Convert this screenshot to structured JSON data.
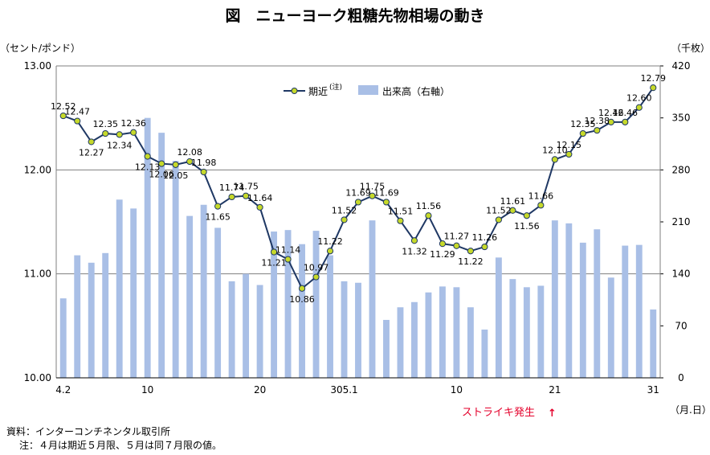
{
  "title": "図　ニューヨーク粗糖先物相場の動き",
  "left_unit": "（セント/ポンド）",
  "right_unit": "（千枚）",
  "x_unit": "（月.日）",
  "strike_label": "ストライキ発生",
  "strike_arrow": "↑",
  "source": "資料：インターコンチネンタル取引所",
  "note": "注：４月は期近５月限、５月は同７月限の値。",
  "colors": {
    "line": "#1f3864",
    "marker": "#c6d92a",
    "bar": "#a9bfe6",
    "grid": "#7f7f7f",
    "strike": "#e4002b"
  },
  "chart_data": {
    "type": "bar+line",
    "legend": {
      "position": "top-center",
      "line_label": "期近",
      "line_note": "(注)",
      "bar_label": "出来高（右軸）"
    },
    "left_axis": {
      "min": 10.0,
      "max": 13.0,
      "ticks": [
        "10.00",
        "11.00",
        "12.00",
        "13.00"
      ]
    },
    "right_axis": {
      "min": 0,
      "max": 420,
      "ticks": [
        "0",
        "70",
        "140",
        "210",
        "280",
        "350",
        "420"
      ]
    },
    "x_tick_labels": [
      {
        "index": 0,
        "label": "4.2"
      },
      {
        "index": 6,
        "label": "10"
      },
      {
        "index": 14,
        "label": "20"
      },
      {
        "index": 20,
        "label": "305.1"
      },
      {
        "index": 28,
        "label": "10"
      },
      {
        "index": 35,
        "label": "21"
      },
      {
        "index": 42,
        "label": "31"
      }
    ],
    "grid": true,
    "series": [
      {
        "name": "期近",
        "values": [
          12.52,
          12.47,
          12.27,
          12.35,
          12.34,
          12.36,
          12.13,
          12.06,
          12.05,
          12.08,
          11.98,
          11.65,
          11.74,
          11.75,
          11.64,
          11.21,
          11.14,
          10.86,
          10.97,
          11.22,
          11.52,
          11.69,
          11.75,
          11.69,
          11.51,
          11.32,
          11.56,
          11.29,
          11.27,
          11.22,
          11.26,
          11.52,
          11.61,
          11.56,
          11.66,
          12.1,
          12.15,
          12.35,
          12.38,
          12.46,
          12.46,
          12.6,
          12.79
        ],
        "labels": [
          "12.52",
          "12.47",
          "12.27",
          "12.35",
          "12.34",
          "12.36",
          "12.13",
          "12.06",
          "12.05",
          "12.08",
          "11.98",
          "11.65",
          "11.74",
          "11.75",
          "11.64",
          "11.21",
          "11.14",
          "10.86",
          "10.97",
          "11.22",
          "11.52",
          "11.69",
          "11.75",
          "11.69",
          "11.51",
          "11.32",
          "11.56",
          "11.29",
          "11.27",
          "11.22",
          "11.26",
          "11.52",
          "11.61",
          "11.56",
          "11.66",
          "12.10",
          "12.15",
          "12.35",
          "12.38",
          "12.46",
          "12.46",
          "12.60",
          "12.79"
        ]
      },
      {
        "name": "出来高（右軸）",
        "values": [
          107,
          165,
          155,
          168,
          240,
          228,
          350,
          330,
          292,
          218,
          233,
          202,
          130,
          140,
          125,
          197,
          199,
          180,
          198,
          165,
          130,
          128,
          212,
          78,
          95,
          102,
          115,
          123,
          122,
          95,
          65,
          162,
          133,
          122,
          124,
          212,
          208,
          182,
          200,
          135,
          178,
          179,
          92
        ]
      }
    ]
  }
}
